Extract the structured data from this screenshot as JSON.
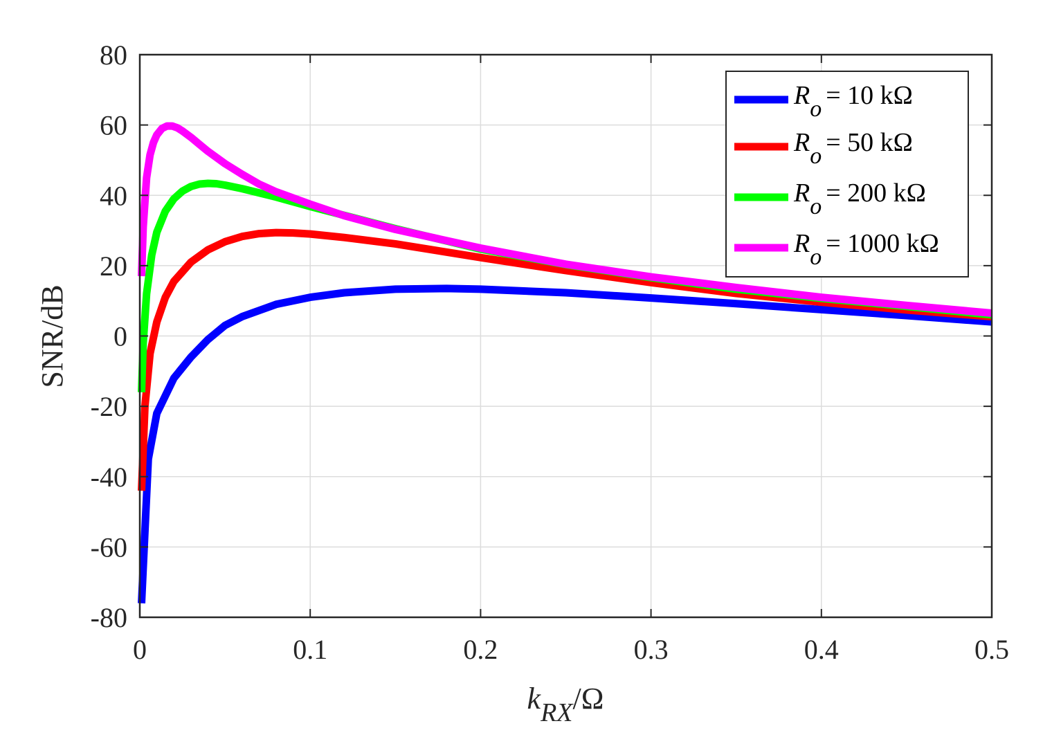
{
  "chart_data": {
    "type": "line",
    "xlabel": {
      "main": "k",
      "sub": "RX",
      "unit": "/Ω"
    },
    "ylabel": "SNR/dB",
    "xlim": [
      0,
      0.5
    ],
    "ylim": [
      -80,
      80
    ],
    "xticks": [
      "0",
      "0.1",
      "0.2",
      "0.3",
      "0.4",
      "0.5"
    ],
    "yticks": [
      "-80",
      "-60",
      "-40",
      "-20",
      "0",
      "20",
      "40",
      "60",
      "80"
    ],
    "grid": true,
    "legend_position": "top-right",
    "series": [
      {
        "name": "R_o = 10 kΩ",
        "legend_symbol": "R",
        "legend_sub": "o",
        "legend_rest": "= 10 kΩ",
        "color": "#0000ff",
        "x": [
          0.001,
          0.005,
          0.01,
          0.02,
          0.03,
          0.04,
          0.05,
          0.06,
          0.08,
          0.1,
          0.12,
          0.15,
          0.18,
          0.2,
          0.25,
          0.3,
          0.35,
          0.4,
          0.45,
          0.5
        ],
        "y": [
          -76,
          -35,
          -22,
          -12,
          -6,
          -1,
          3,
          5.5,
          9,
          11,
          12.3,
          13.3,
          13.5,
          13.3,
          12.3,
          10.8,
          9.2,
          7.5,
          5.8,
          4
        ]
      },
      {
        "name": "R_o = 50 kΩ",
        "legend_symbol": "R",
        "legend_sub": "o",
        "legend_rest": "= 50 kΩ",
        "color": "#ff0000",
        "x": [
          0.001,
          0.003,
          0.006,
          0.01,
          0.015,
          0.02,
          0.03,
          0.04,
          0.05,
          0.06,
          0.07,
          0.08,
          0.09,
          0.1,
          0.12,
          0.15,
          0.2,
          0.25,
          0.3,
          0.35,
          0.4,
          0.45,
          0.5
        ],
        "y": [
          -44,
          -20,
          -5,
          4,
          11,
          15.5,
          21,
          24.5,
          26.8,
          28.3,
          29.1,
          29.4,
          29.3,
          29,
          28,
          26.2,
          22.3,
          18.6,
          15.2,
          12.1,
          9.6,
          7.4,
          5.5
        ]
      },
      {
        "name": "R_o = 200 kΩ",
        "legend_symbol": "R",
        "legend_sub": "o",
        "legend_rest": "= 200 kΩ",
        "color": "#00ff00",
        "x": [
          0.001,
          0.002,
          0.004,
          0.007,
          0.01,
          0.015,
          0.02,
          0.025,
          0.03,
          0.035,
          0.04,
          0.045,
          0.05,
          0.06,
          0.08,
          0.1,
          0.12,
          0.15,
          0.2,
          0.25,
          0.3,
          0.35,
          0.4,
          0.45,
          0.5
        ],
        "y": [
          -16,
          -2,
          12,
          23,
          29.5,
          35.5,
          39,
          41.2,
          42.5,
          43.2,
          43.4,
          43.3,
          42.9,
          41.9,
          39.5,
          36.8,
          34.3,
          30.5,
          24.7,
          20.3,
          16.6,
          13.3,
          10.7,
          8.4,
          6
        ]
      },
      {
        "name": "R_o = 1000 kΩ",
        "legend_symbol": "R",
        "legend_sub": "o",
        "legend_rest": "= 1000 kΩ",
        "color": "#ff00ff",
        "x": [
          0.001,
          0.002,
          0.004,
          0.006,
          0.008,
          0.01,
          0.013,
          0.016,
          0.019,
          0.022,
          0.025,
          0.03,
          0.035,
          0.04,
          0.05,
          0.06,
          0.07,
          0.08,
          0.1,
          0.12,
          0.15,
          0.2,
          0.25,
          0.3,
          0.35,
          0.4,
          0.45,
          0.5
        ],
        "y": [
          17,
          31,
          45,
          51.5,
          55,
          57.2,
          59,
          59.7,
          59.7,
          59.2,
          58.3,
          56.5,
          54.5,
          52.5,
          49,
          46,
          43.2,
          41,
          37.5,
          34.2,
          30.3,
          25,
          20.4,
          16.8,
          13.8,
          11,
          8.7,
          6.5
        ]
      }
    ]
  }
}
